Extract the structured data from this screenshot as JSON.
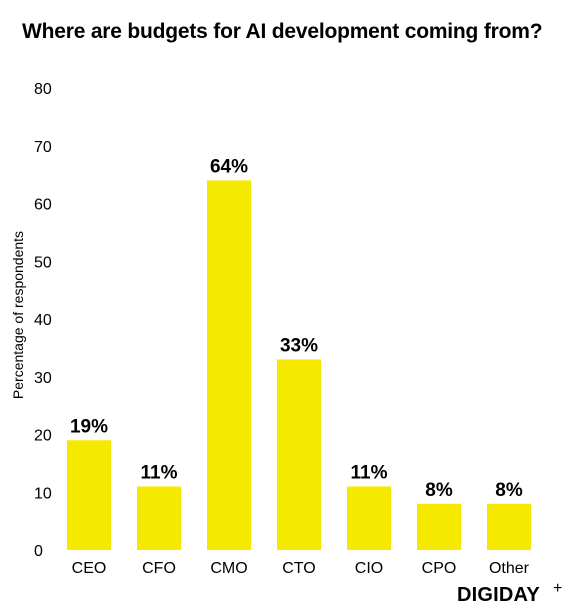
{
  "chart_data": {
    "type": "bar",
    "title": "Where are budgets for AI development coming from?",
    "ylabel": "Percentage of respondents",
    "xlabel": "",
    "categories": [
      "CEO",
      "CFO",
      "CMO",
      "CTO",
      "CIO",
      "CPO",
      "Other"
    ],
    "values": [
      19,
      11,
      64,
      33,
      11,
      8,
      8
    ],
    "data_labels": [
      "19%",
      "11%",
      "64%",
      "33%",
      "11%",
      "8%",
      "8%"
    ],
    "ylim": [
      0,
      80
    ],
    "yticks": [
      0,
      10,
      20,
      30,
      40,
      50,
      60,
      70,
      80
    ],
    "grid": false,
    "legend": "none",
    "bar_color": "#F5E900"
  },
  "brand": {
    "logo": "DIGIDAY",
    "mark": "+"
  }
}
